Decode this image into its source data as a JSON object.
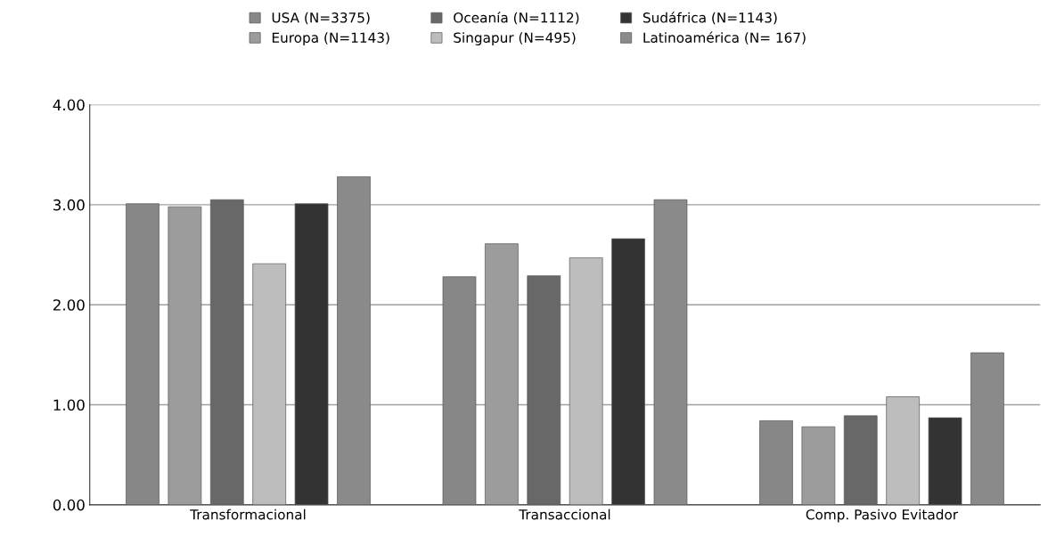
{
  "chart_data": {
    "type": "bar",
    "categories": [
      "Transformacional",
      "Transaccional",
      "Comp. Pasivo Evitador"
    ],
    "series": [
      {
        "name": "USA (N=3375)",
        "color": "#878787",
        "values": [
          3.01,
          2.28,
          0.84
        ]
      },
      {
        "name": "Europa (N=1143)",
        "color": "#9c9c9c",
        "values": [
          2.98,
          2.61,
          0.78
        ]
      },
      {
        "name": "Oceanía (N=1112)",
        "color": "#686868",
        "values": [
          3.05,
          2.29,
          0.89
        ]
      },
      {
        "name": "Singapur (N=495)",
        "color": "#bdbdbd",
        "values": [
          2.41,
          2.47,
          1.08
        ]
      },
      {
        "name": "Sudáfrica (N=1143)",
        "color": "#333333",
        "values": [
          3.01,
          2.66,
          0.87
        ]
      },
      {
        "name": "Latinoamérica (N= 167)",
        "color": "#8a8a8a",
        "values": [
          3.28,
          3.05,
          1.52
        ]
      }
    ],
    "ylim": [
      0,
      4
    ],
    "yticks": [
      {
        "value": 0,
        "label": "0.00"
      },
      {
        "value": 1,
        "label": "1.00"
      },
      {
        "value": 2,
        "label": "2.00"
      },
      {
        "value": 3,
        "label": "3.00"
      },
      {
        "value": 4,
        "label": "4.00"
      }
    ],
    "grid": "y",
    "legend": "top"
  }
}
